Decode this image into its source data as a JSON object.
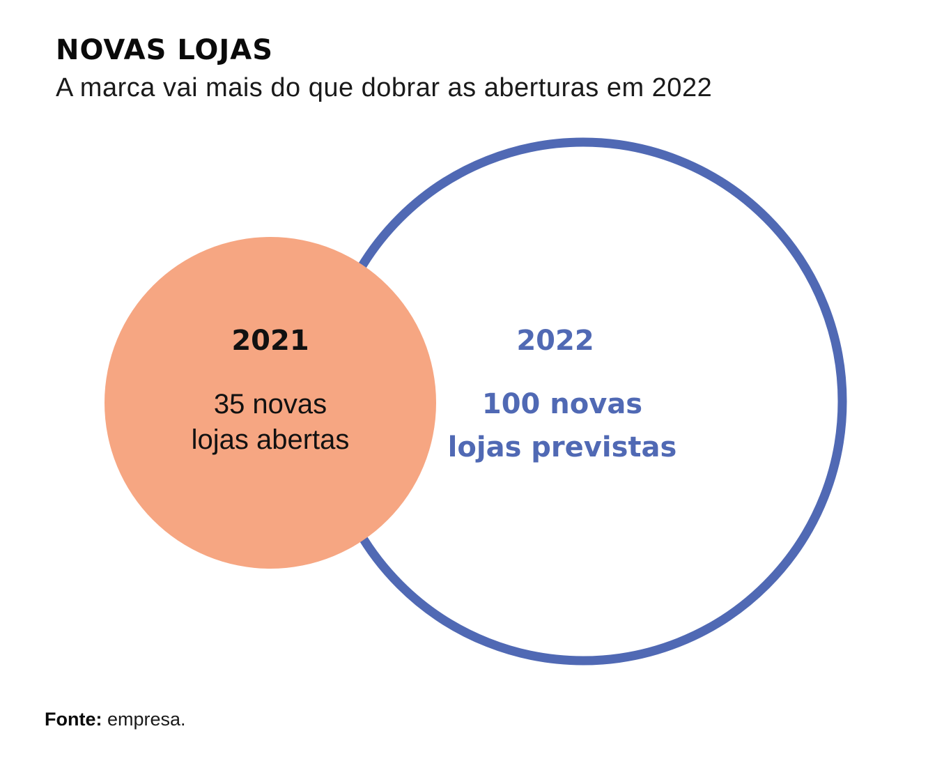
{
  "header": {
    "title": "NOVAS LOJAS",
    "subtitle": "A marca vai mais do que dobrar as aberturas em 2022"
  },
  "circles": {
    "small": {
      "year": "2021",
      "line1": "35 novas",
      "line2": "lojas abertas",
      "value": 35,
      "fill_color": "#f6a682",
      "text_color": "#111111"
    },
    "large": {
      "year": "2022",
      "line1": "100 novas",
      "line2": "lojas previstas",
      "value": 100,
      "stroke_color": "#5069b4",
      "text_color": "#5069b4"
    }
  },
  "footer": {
    "source_label": "Fonte:",
    "source_value": " empresa."
  }
}
